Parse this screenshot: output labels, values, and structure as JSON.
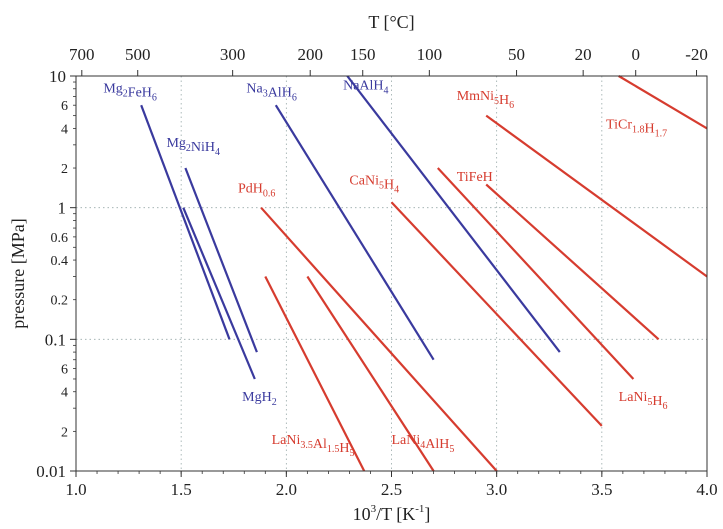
{
  "chart_data": {
    "type": "line",
    "top_axis": {
      "label": "T [°C]",
      "ticks": [
        700,
        500,
        300,
        200,
        150,
        100,
        50,
        20,
        0,
        -20
      ]
    },
    "x_axis": {
      "label": "10^3/T [K^-1]",
      "label_parts": {
        "base": "10",
        "sup1": "3",
        "mid": "/T [K",
        "sup2": "-1",
        "tail": "]"
      },
      "ticks": [
        1.0,
        1.5,
        2.0,
        2.5,
        3.0,
        3.5,
        4.0
      ],
      "tick_labels": [
        "1.0",
        "1.5",
        "2.0",
        "2.5",
        "3.0",
        "3.5",
        "4.0"
      ],
      "range": [
        1.0,
        4.0
      ]
    },
    "y_axis": {
      "label": "pressure [MPa]",
      "scale": "log",
      "range": [
        0.01,
        10
      ],
      "major_ticks": [
        0.01,
        0.1,
        1,
        10
      ],
      "major_tick_labels": [
        "0.01",
        "0.1",
        "1",
        "10"
      ],
      "minor_ticks": [
        2,
        4,
        6,
        0.2,
        0.4,
        0.6,
        0.02,
        0.04,
        0.06
      ],
      "minor_tick_labels": [
        "2",
        "4",
        "6",
        "0.2",
        "0.4",
        "0.6",
        "2",
        "4",
        "6"
      ]
    },
    "grid": "dotted at major ticks",
    "series": [
      {
        "name": "Mg2FeH6",
        "label": [
          {
            "t": "Mg"
          },
          {
            "t": "2",
            "s": "sub"
          },
          {
            "t": "FeH"
          },
          {
            "t": "6",
            "s": "sub"
          }
        ],
        "color": "#3a3a9e",
        "points": [
          [
            1.31,
            6
          ],
          [
            1.73,
            0.1
          ]
        ],
        "label_at": [
          1.13,
          7.5
        ]
      },
      {
        "name": "Mg2NiH4",
        "label": [
          {
            "t": "Mg"
          },
          {
            "t": "2",
            "s": "sub"
          },
          {
            "t": "NiH"
          },
          {
            "t": "4",
            "s": "sub"
          }
        ],
        "color": "#3a3a9e",
        "points": [
          [
            1.52,
            2
          ],
          [
            1.86,
            0.08
          ]
        ],
        "label_at": [
          1.43,
          2.9
        ]
      },
      {
        "name": "MgH2",
        "label": [
          {
            "t": "MgH"
          },
          {
            "t": "2",
            "s": "sub"
          }
        ],
        "color": "#3a3a9e",
        "points": [
          [
            1.51,
            1
          ],
          [
            1.85,
            0.05
          ]
        ],
        "label_at": [
          1.79,
          0.034
        ]
      },
      {
        "name": "Na3AlH6",
        "label": [
          {
            "t": "Na"
          },
          {
            "t": "3",
            "s": "sub"
          },
          {
            "t": "AlH"
          },
          {
            "t": "6",
            "s": "sub"
          }
        ],
        "color": "#3a3a9e",
        "points": [
          [
            1.95,
            6
          ],
          [
            2.7,
            0.07
          ]
        ],
        "label_at": [
          1.81,
          7.5
        ]
      },
      {
        "name": "NaAlH4",
        "label": [
          {
            "t": "NaAlH"
          },
          {
            "t": "4",
            "s": "sub"
          }
        ],
        "color": "#3a3a9e",
        "points": [
          [
            2.29,
            10
          ],
          [
            3.3,
            0.08
          ]
        ],
        "label_at": [
          2.27,
          7.9
        ]
      },
      {
        "name": "TiCr1.8H1.7",
        "label": [
          {
            "t": "TiCr"
          },
          {
            "t": "1.8",
            "s": "sub"
          },
          {
            "t": "H"
          },
          {
            "t": "1.7",
            "s": "sub"
          }
        ],
        "color": "#d63c2f",
        "points": [
          [
            3.58,
            10
          ],
          [
            4.0,
            4
          ]
        ],
        "label_at": [
          3.52,
          4.0
        ]
      },
      {
        "name": "MmNi5H6",
        "label": [
          {
            "t": "MmNi"
          },
          {
            "t": "5",
            "s": "sub"
          },
          {
            "t": "H"
          },
          {
            "t": "6",
            "s": "sub"
          }
        ],
        "color": "#d63c2f",
        "points": [
          [
            2.95,
            5
          ],
          [
            4.0,
            0.3
          ]
        ],
        "label_at": [
          2.81,
          6.6
        ]
      },
      {
        "name": "TiFeH",
        "label": [
          {
            "t": "TiFeH"
          }
        ],
        "color": "#d63c2f",
        "points": [
          [
            2.95,
            1.5
          ],
          [
            3.77,
            0.1
          ]
        ],
        "label_at": [
          2.81,
          1.6
        ]
      },
      {
        "name": "LaNi5H6",
        "label": [
          {
            "t": "LaNi"
          },
          {
            "t": "5",
            "s": "sub"
          },
          {
            "t": "H"
          },
          {
            "t": "6",
            "s": "sub"
          }
        ],
        "color": "#d63c2f",
        "points": [
          [
            2.72,
            2
          ],
          [
            3.65,
            0.05
          ]
        ],
        "label_at": [
          3.58,
          0.034
        ]
      },
      {
        "name": "CaNi5H4",
        "label": [
          {
            "t": "CaNi"
          },
          {
            "t": "5",
            "s": "sub"
          },
          {
            "t": "H"
          },
          {
            "t": "4",
            "s": "sub"
          }
        ],
        "color": "#d63c2f",
        "points": [
          [
            2.5,
            1.1
          ],
          [
            3.5,
            0.022
          ]
        ],
        "label_at": [
          2.3,
          1.5
        ]
      },
      {
        "name": "PdH0.6",
        "label": [
          {
            "t": "PdH"
          },
          {
            "t": "0.6",
            "s": "sub"
          }
        ],
        "color": "#d63c2f",
        "points": [
          [
            1.88,
            1
          ],
          [
            3.0,
            0.01
          ]
        ],
        "label_at": [
          1.77,
          1.3
        ]
      },
      {
        "name": "LaNi3.5Al1.5H5",
        "label": [
          {
            "t": "LaNi"
          },
          {
            "t": "3.5",
            "s": "sub"
          },
          {
            "t": "Al"
          },
          {
            "t": "1.5",
            "s": "sub"
          },
          {
            "t": "H"
          },
          {
            "t": "5",
            "s": "sub"
          }
        ],
        "color": "#d63c2f",
        "points": [
          [
            1.9,
            0.3
          ],
          [
            2.37,
            0.01
          ]
        ],
        "label_at": [
          1.93,
          0.016
        ]
      },
      {
        "name": "LaNi4AlH5",
        "label": [
          {
            "t": "LaNi"
          },
          {
            "t": "4",
            "s": "sub"
          },
          {
            "t": "AlH"
          },
          {
            "t": "5",
            "s": "sub"
          }
        ],
        "color": "#d63c2f",
        "points": [
          [
            2.1,
            0.3
          ],
          [
            2.7,
            0.01
          ]
        ],
        "label_at": [
          2.5,
          0.016
        ]
      }
    ]
  }
}
